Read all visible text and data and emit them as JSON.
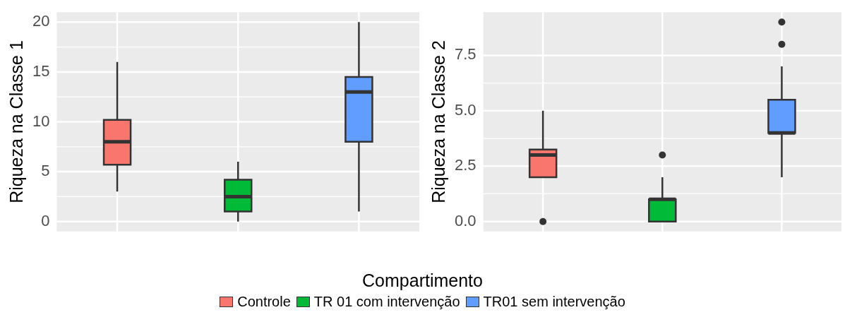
{
  "chart_data": [
    {
      "type": "box",
      "ylabel": "Riqueza na Classe 1",
      "legend_title": "Compartimento",
      "legend": "bottom",
      "tick_labels": "y",
      "grid": true,
      "categories": [
        null,
        null,
        null
      ],
      "series": [
        {
          "name": "Controle",
          "color": "#f8766d",
          "boxes": [
            {
              "low": 3,
              "q1": 5.7,
              "median": 8,
              "q3": 10.2,
              "high": 16
            },
            null,
            null
          ]
        },
        {
          "name": "TR 01 com intervenção",
          "color": "#00ba38",
          "boxes": [
            null,
            {
              "low": 0,
              "q1": 1,
              "median": 2.5,
              "q3": 4.2,
              "high": 6
            },
            null
          ]
        },
        {
          "name": "TR01 sem intervenção",
          "color": "#619cff",
          "boxes": [
            null,
            null,
            {
              "low": 1,
              "q1": 8,
              "median": 13,
              "q3": 14.5,
              "high": 20
            }
          ]
        }
      ],
      "ylim": [
        -1,
        21
      ],
      "yticks": [
        0,
        5,
        10,
        15,
        20
      ]
    },
    {
      "type": "box",
      "ylabel": "Riqueza na Classe 2",
      "legend": "bottom",
      "tick_labels": "y",
      "grid": true,
      "categories": [
        null,
        null,
        null
      ],
      "series": [
        {
          "name": "Controle",
          "color": "#f8766d",
          "boxes": [
            {
              "low": 2,
              "q1": 2,
              "median": 3,
              "q3": 3.25,
              "high": 5,
              "outliers": [
                0
              ]
            },
            null,
            null
          ]
        },
        {
          "name": "TR 01 com intervenção",
          "color": "#00ba38",
          "boxes": [
            null,
            {
              "low": 0,
              "q1": 0,
              "median": 1,
              "q3": 1,
              "high": 2,
              "outliers": [
                3
              ]
            },
            null
          ]
        },
        {
          "name": "TR01 sem intervenção",
          "color": "#619cff",
          "boxes": [
            null,
            null,
            {
              "low": 2,
              "q1": 4,
              "median": 4,
              "q3": 5.5,
              "high": 7,
              "outliers": [
                8,
                9
              ]
            }
          ]
        }
      ],
      "ylim": [
        -0.45,
        9.45
      ],
      "yticks": [
        {
          "value": 0,
          "label": "0.0"
        },
        {
          "value": 2.5,
          "label": "2.5"
        },
        {
          "value": 5,
          "label": "5.0"
        },
        {
          "value": 7.5,
          "label": "7.5"
        }
      ]
    }
  ]
}
